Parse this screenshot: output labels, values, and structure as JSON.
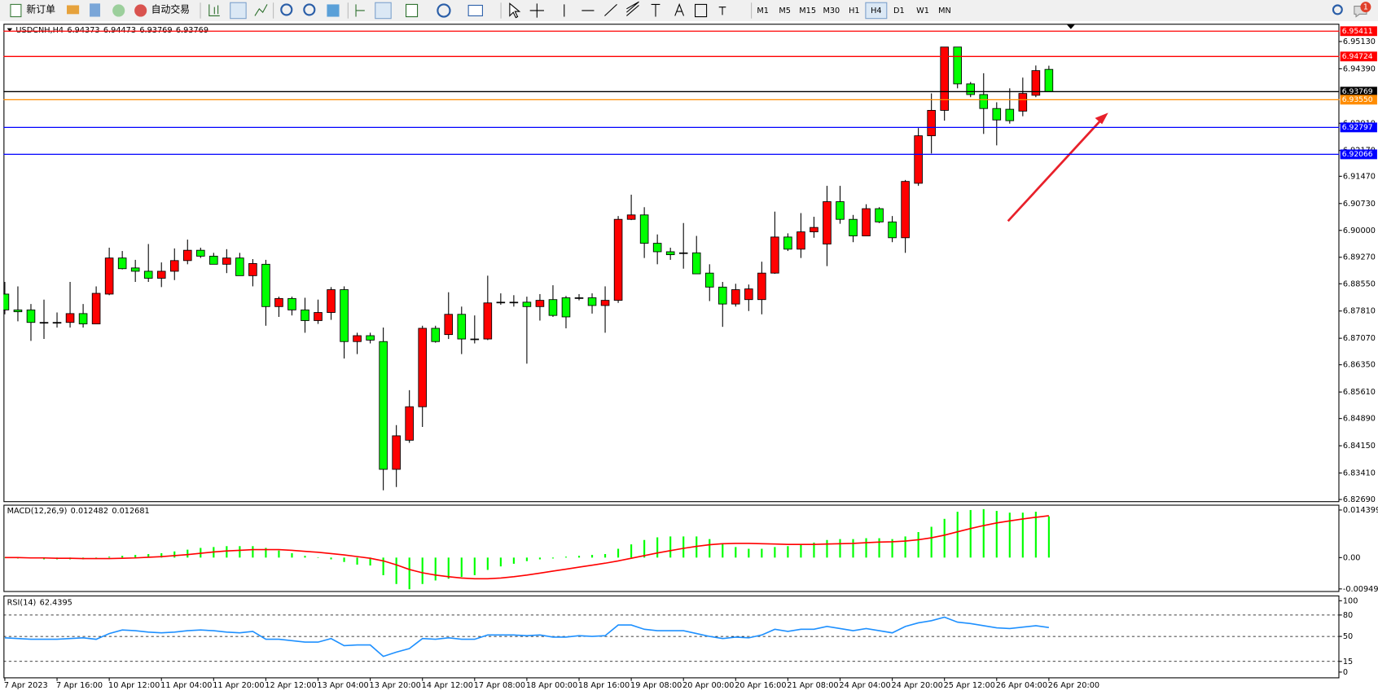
{
  "toolbar": {
    "new_order": "新订单",
    "auto_trading": "自动交易",
    "timeframes": [
      "M1",
      "M5",
      "M15",
      "M30",
      "H1",
      "H4",
      "D1",
      "W1",
      "MN"
    ],
    "active_timeframe": "H4",
    "notifications": 1
  },
  "chart_data": [
    {
      "type": "candlestick",
      "symbol": "USDCNH,H4",
      "up_color": "#ff0000",
      "down_color": "#00ff00",
      "grid": false,
      "x": [
        "7 Apr 2023",
        null,
        null,
        null,
        "7 Apr 16:00",
        null,
        null,
        null,
        "10 Apr 12:00",
        null,
        null,
        null,
        "11 Apr 04:00",
        null,
        null,
        null,
        "11 Apr 20:00",
        null,
        null,
        null,
        "12 Apr 12:00",
        null,
        null,
        null,
        "13 Apr 04:00",
        null,
        null,
        null,
        "13 Apr 20:00",
        null,
        null,
        null,
        "14 Apr 12:00",
        null,
        null,
        null,
        "17 Apr 08:00",
        null,
        null,
        null,
        "18 Apr 00:00",
        null,
        null,
        null,
        "18 Apr 16:00",
        null,
        null,
        null,
        "19 Apr 08:00",
        null,
        null,
        null,
        "20 Apr 00:00",
        null,
        null,
        null,
        "20 Apr 16:00",
        null,
        null,
        null,
        "21 Apr 08:00",
        null,
        null,
        null,
        "24 Apr 04:00",
        null,
        null,
        null,
        "24 Apr 20:00",
        null,
        null,
        null,
        "25 Apr 12:00",
        null,
        null,
        null,
        "26 Apr 04:00",
        null,
        null,
        null,
        "26 Apr 20:00"
      ],
      "ohlc": [
        [
          6.8827,
          6.886,
          6.8772,
          6.8784
        ],
        [
          6.8784,
          6.8848,
          6.8753,
          6.8779
        ],
        [
          6.8784,
          6.88,
          6.87,
          6.875
        ],
        [
          6.875,
          6.8812,
          6.8705,
          6.875
        ],
        [
          6.875,
          6.8777,
          6.8736,
          6.875
        ],
        [
          6.875,
          6.886,
          6.8736,
          6.8774
        ],
        [
          6.8774,
          6.88,
          6.8736,
          6.8746
        ],
        [
          6.8746,
          6.8848,
          6.8746,
          6.8829
        ],
        [
          6.8827,
          6.8953,
          6.8824,
          6.8925
        ],
        [
          6.8925,
          6.8944,
          6.8894,
          6.8896
        ],
        [
          6.8898,
          6.892,
          6.886,
          6.8889
        ],
        [
          6.8889,
          6.8963,
          6.886,
          6.887
        ],
        [
          6.887,
          6.8913,
          6.8846,
          6.8889
        ],
        [
          6.8889,
          6.8951,
          6.8865,
          6.8918
        ],
        [
          6.8918,
          6.8975,
          6.8908,
          6.8946
        ],
        [
          6.8946,
          6.8953,
          6.8925,
          6.893
        ],
        [
          6.893,
          6.8939,
          6.8908,
          6.8908
        ],
        [
          6.8908,
          6.8949,
          6.8884,
          6.8925
        ],
        [
          6.8925,
          6.8939,
          6.8877,
          6.8877
        ],
        [
          6.8877,
          6.8922,
          6.8848,
          6.891
        ],
        [
          6.8908,
          6.892,
          6.8741,
          6.8793
        ],
        [
          6.8793,
          6.882,
          6.8765,
          6.8815
        ],
        [
          6.8815,
          6.882,
          6.8769,
          6.8784
        ],
        [
          6.8784,
          6.8817,
          6.8722,
          6.8755
        ],
        [
          6.8755,
          6.8812,
          6.8746,
          6.8777
        ],
        [
          6.8777,
          6.8846,
          6.8757,
          6.8839
        ],
        [
          6.8839,
          6.8848,
          6.8652,
          6.8698
        ],
        [
          6.8698,
          6.8722,
          6.8664,
          6.8714
        ],
        [
          6.8714,
          6.8722,
          6.8693,
          6.8702
        ],
        [
          6.8698,
          6.8736,
          6.8294,
          6.8351
        ],
        [
          6.8351,
          6.8471,
          6.8303,
          6.8442
        ],
        [
          6.843,
          6.8566,
          6.8423,
          6.8521
        ],
        [
          6.8521,
          6.8741,
          6.8466,
          6.8734
        ],
        [
          6.8734,
          6.8741,
          6.8695,
          6.8698
        ],
        [
          6.8717,
          6.8832,
          6.8705,
          6.8772
        ],
        [
          6.8772,
          6.8793,
          6.8664,
          6.8705
        ],
        [
          6.8705,
          6.8769,
          6.8693,
          6.8705
        ],
        [
          6.8705,
          6.8877,
          6.8702,
          6.8803
        ],
        [
          6.8805,
          6.8829,
          6.8798,
          6.8805
        ],
        [
          6.8805,
          6.8824,
          6.8793,
          6.8805
        ],
        [
          6.8805,
          6.882,
          6.8638,
          6.8793
        ],
        [
          6.8793,
          6.8827,
          6.8755,
          6.881
        ],
        [
          6.8812,
          6.8851,
          6.8765,
          6.8769
        ],
        [
          6.8817,
          6.8822,
          6.8734,
          6.8765
        ],
        [
          6.8817,
          6.8827,
          6.881,
          6.8817
        ],
        [
          6.8817,
          6.8829,
          6.8774,
          6.8796
        ],
        [
          6.8796,
          6.8848,
          6.8722,
          6.881
        ],
        [
          6.881,
          6.9039,
          6.8803,
          6.903
        ],
        [
          6.903,
          6.9097,
          6.9028,
          6.9042
        ],
        [
          6.9042,
          6.9063,
          6.8925,
          6.8965
        ],
        [
          6.8965,
          6.8989,
          6.8908,
          6.8942
        ],
        [
          6.8942,
          6.8953,
          6.892,
          6.8934
        ],
        [
          6.8939,
          6.902,
          6.8896,
          6.8939
        ],
        [
          6.8939,
          6.8985,
          6.8882,
          6.8882
        ],
        [
          6.8884,
          6.8908,
          6.8808,
          6.8846
        ],
        [
          6.8846,
          6.886,
          6.8738,
          6.88
        ],
        [
          6.88,
          6.8855,
          6.8793,
          6.8839
        ],
        [
          6.8812,
          6.8853,
          6.8781,
          6.8841
        ],
        [
          6.8812,
          6.8915,
          6.8772,
          6.8884
        ],
        [
          6.8884,
          6.9051,
          6.8882,
          6.8982
        ],
        [
          6.8982,
          6.8992,
          6.8944,
          6.8949
        ],
        [
          6.8949,
          6.9047,
          6.8925,
          6.8996
        ],
        [
          6.8996,
          6.9037,
          6.898,
          6.9008
        ],
        [
          6.8963,
          6.9121,
          6.8903,
          6.9078
        ],
        [
          6.9078,
          6.9121,
          6.9018,
          6.903
        ],
        [
          6.903,
          6.9042,
          6.8968,
          6.8985
        ],
        [
          6.8985,
          6.9071,
          6.8985,
          6.9059
        ],
        [
          6.9059,
          6.9063,
          6.902,
          6.9023
        ],
        [
          6.9023,
          6.9039,
          6.8968,
          6.898
        ],
        [
          6.898,
          6.9137,
          6.8939,
          6.9133
        ],
        [
          6.9128,
          6.9278,
          6.9121,
          6.9257
        ],
        [
          6.9257,
          6.9372,
          6.9209,
          6.9326
        ],
        [
          6.9326,
          6.9498,
          6.9298,
          6.9498
        ],
        [
          6.9498,
          6.9498,
          6.9386,
          6.9398
        ],
        [
          6.9398,
          6.9403,
          6.9362,
          6.9369
        ],
        [
          6.9369,
          6.9427,
          6.9262,
          6.9331
        ],
        [
          6.9331,
          6.9348,
          6.9231,
          6.93
        ],
        [
          6.9329,
          6.9386,
          6.929,
          6.9298
        ],
        [
          6.9324,
          6.9415,
          6.931,
          6.9372
        ],
        [
          6.9367,
          6.9448,
          6.9362,
          6.9434
        ],
        [
          6.94373,
          6.94473,
          6.93769,
          6.93769
        ]
      ],
      "ylim": [
        6.8262,
        6.9554
      ],
      "yticks": [
        {
          "value": 6.9513,
          "label": "6.95130"
        },
        {
          "value": 6.9439,
          "label": "6.94390"
        },
        {
          "value": 6.9291,
          "label": "6.92910"
        },
        {
          "value": 6.9217,
          "label": "6.92170"
        },
        {
          "value": 6.9147,
          "label": "6.91470"
        },
        {
          "value": 6.9073,
          "label": "6.90730"
        },
        {
          "value": 6.9,
          "label": "6.90000"
        },
        {
          "value": 6.8927,
          "label": "6.89270"
        },
        {
          "value": 6.8855,
          "label": "6.88550"
        },
        {
          "value": 6.8781,
          "label": "6.87810"
        },
        {
          "value": 6.8707,
          "label": "6.87070"
        },
        {
          "value": 6.8635,
          "label": "6.86350"
        },
        {
          "value": 6.8561,
          "label": "6.85610"
        },
        {
          "value": 6.8489,
          "label": "6.84890"
        },
        {
          "value": 6.8415,
          "label": "6.84150"
        },
        {
          "value": 6.8341,
          "label": "6.83410"
        },
        {
          "value": 6.8269,
          "label": "6.82690"
        }
      ],
      "hlines": [
        {
          "value": 6.95411,
          "color": "#ff0000"
        },
        {
          "value": 6.94724,
          "color": "#ff0000"
        },
        {
          "value": 6.93769,
          "color": "#000000"
        },
        {
          "value": 6.9355,
          "label": "6.93550",
          "color": "#ff8c00"
        },
        {
          "value": 6.92797,
          "color": "#0000ff"
        },
        {
          "value": 6.92066,
          "color": "#0000ff"
        }
      ]
    },
    {
      "type": "indicator",
      "label": "MACD(12,26,9)",
      "grid": false,
      "ylim": [
        -0.0104,
        0.016
      ],
      "yticks": [
        0.014399,
        {
          "value": 0,
          "label": "0.00"
        },
        -0.009491
      ],
      "series": [
        {
          "style": "histogram",
          "color": "#00ff00",
          "values": [
            0,
            -0.00027,
            -0.00027,
            -0.00053,
            -0.00053,
            -0.00053,
            -0.00053,
            -0.00027,
            0.00027,
            0.00053,
            0.0008,
            0.00107,
            0.00133,
            0.00187,
            0.0024,
            0.00293,
            0.0032,
            0.00347,
            0.00347,
            0.00347,
            0.00293,
            0.00213,
            0.00133,
            0.00053,
            0.0001,
            -0.00053,
            -0.00133,
            -0.00213,
            -0.0024,
            -0.00533,
            -0.008,
            -0.0096,
            -0.008,
            -0.00693,
            -0.0064,
            -0.00587,
            -0.00533,
            -0.00373,
            -0.00267,
            -0.00187,
            -0.00107,
            -0.00053,
            -0.00027,
            0.00027,
            0.00053,
            0.0008,
            0.00107,
            0.00267,
            0.004,
            0.00533,
            0.00613,
            0.0064,
            0.0064,
            0.0064,
            0.0056,
            0.00427,
            0.0032,
            0.00267,
            0.00267,
            0.0032,
            0.00347,
            0.004,
            0.00453,
            0.00533,
            0.0056,
            0.0056,
            0.00587,
            0.00587,
            0.0056,
            0.0064,
            0.00773,
            0.00933,
            0.01173,
            0.01387,
            0.0144,
            0.01467,
            0.01413,
            0.0136,
            0.0136,
            0.01387,
            0.012482
          ]
        },
        {
          "style": "line",
          "color": "#ff0000",
          "values": [
            0,
            0,
            -0.0001,
            -0.0001,
            -0.0002,
            -0.0002,
            -0.0003,
            -0.0003,
            -0.0003,
            -0.0002,
            -0.0001,
            0.0001,
            0.0003,
            0.0006,
            0.0009,
            0.0013,
            0.0017,
            0.002,
            0.0022,
            0.0024,
            0.0024,
            0.0024,
            0.0022,
            0.0019,
            0.0016,
            0.0012,
            0.0008,
            0.0003,
            -0.0002,
            -0.001,
            -0.0022,
            -0.0036,
            -0.0046,
            -0.0053,
            -0.0058,
            -0.0062,
            -0.0064,
            -0.0064,
            -0.0062,
            -0.0058,
            -0.0053,
            -0.0047,
            -0.0041,
            -0.0035,
            -0.0029,
            -0.0023,
            -0.0017,
            -0.001,
            -0.0002,
            0.0006,
            0.0014,
            0.0021,
            0.0028,
            0.0034,
            0.0039,
            0.0042,
            0.0043,
            0.0043,
            0.0042,
            0.0041,
            0.004,
            0.004,
            0.004,
            0.0041,
            0.0042,
            0.0043,
            0.0045,
            0.0047,
            0.0048,
            0.005,
            0.0054,
            0.006,
            0.0068,
            0.0078,
            0.0088,
            0.0097,
            0.0105,
            0.0111,
            0.0117,
            0.0122,
            0.012681
          ]
        }
      ]
    },
    {
      "type": "indicator",
      "label": "RSI(14)",
      "grid": "dashed",
      "ylim": [
        0,
        100
      ],
      "yticks": [
        100,
        80,
        50,
        15,
        0
      ],
      "series": [
        {
          "style": "line",
          "color": "#1e90ff",
          "values": [
            48,
            47,
            46,
            46,
            46,
            47,
            48,
            46,
            54,
            59,
            58,
            56,
            55,
            56,
            58,
            59,
            58,
            56,
            55,
            57,
            46,
            46,
            44,
            42,
            42,
            47,
            37,
            38,
            38,
            22,
            28,
            33,
            47,
            46,
            48,
            46,
            46,
            52,
            52,
            52,
            51,
            52,
            49,
            49,
            51,
            50,
            51,
            66,
            66,
            60,
            58,
            58,
            58,
            54,
            50,
            47,
            49,
            48,
            52,
            60,
            57,
            60,
            60,
            64,
            61,
            58,
            61,
            58,
            55,
            64,
            69,
            72,
            77,
            70,
            68,
            65,
            62,
            61,
            63,
            65,
            62.4395
          ]
        }
      ]
    }
  ]
}
